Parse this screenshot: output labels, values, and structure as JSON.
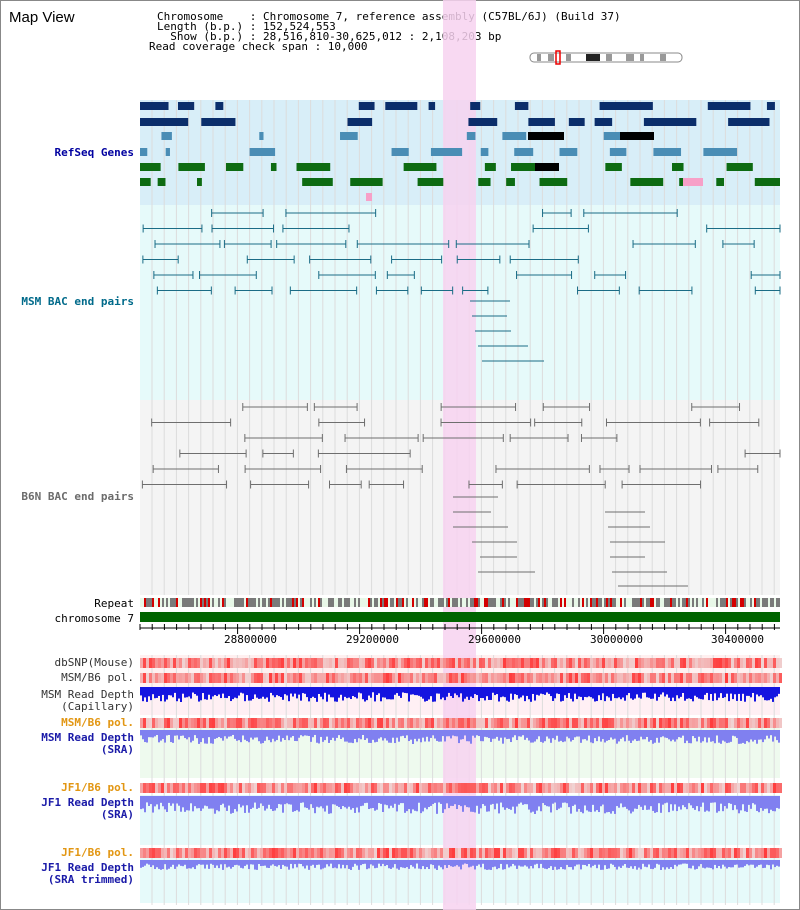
{
  "header": {
    "view_title": "Map View",
    "chromosome_line": "Chromosome    : Chromosome 7, reference assembly (C57BL/6J) (Build 37)",
    "length_line": "Length (b.p.) : 152,524,553",
    "show_line": "  Show (b.p.) : 28,516,810-30,625,012 : 2,108,203 bp",
    "read_line": "Read coverage check span : 10,000"
  },
  "tracks": {
    "refseq_label": "RefSeq Genes",
    "msm_bac_label": "MSM BAC end pairs",
    "b6n_bac_label": "B6N BAC end pairs",
    "repeat_label": "Repeat",
    "chromosome_label": "chromosome 7",
    "dbsnp_label": "dbSNP(Mouse)",
    "msm_b6_pol_label": "MSM/B6 pol.",
    "msm_read_depth_cap_label1": "MSM Read Depth",
    "msm_read_depth_cap_label2": "(Capillary)",
    "msm_b6_pol2_label": "MSM/B6 pol.",
    "msm_read_depth_sra_label1": "MSM Read Depth",
    "msm_read_depth_sra_label2": "(SRA)",
    "jf1_b6_pol_label": "JF1/B6 pol.",
    "jf1_read_depth_label1": "JF1 Read Depth",
    "jf1_read_depth_label2": "(SRA)",
    "jf1_b6_pol2_label": "JF1/B6 pol.",
    "jf1_read_depth_trim_label1": "JF1 Read Depth",
    "jf1_read_depth_trim_label2": "(SRA trimmed)"
  },
  "ruler": {
    "ticks": [
      "28800000",
      "29200000",
      "29600000",
      "30000000",
      "30400000"
    ]
  },
  "colors": {
    "refseq_bg": "#d8eef8",
    "msm_bg": "#e6fafa",
    "b6n_bg": "#f4f4f4",
    "highlight": "#f7d2f0",
    "chromosome": "#006400",
    "depth_blue": "#1414e0",
    "depth_light": "#8080f0"
  }
}
